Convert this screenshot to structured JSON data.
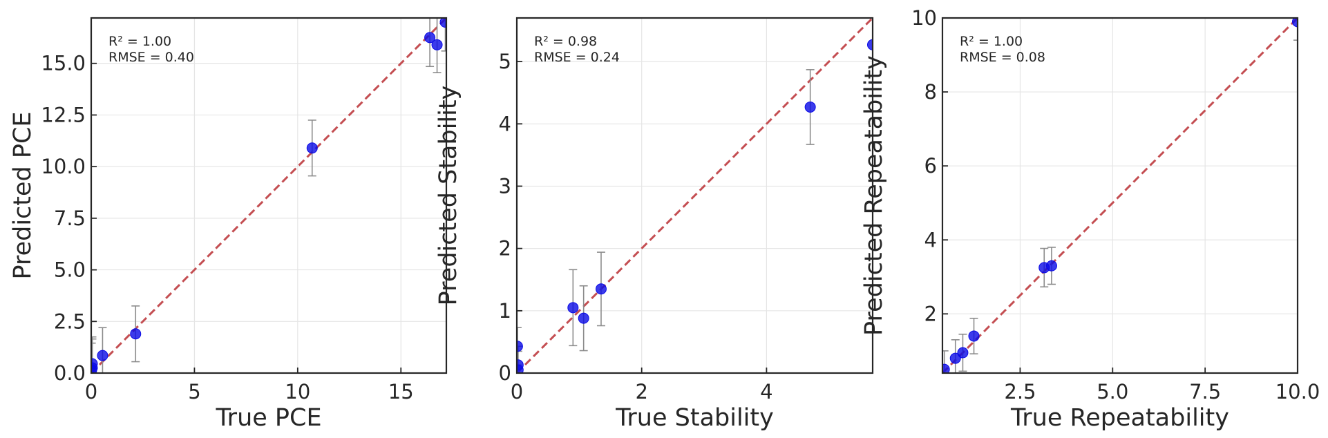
{
  "chart_data": [
    {
      "type": "scatter",
      "xlabel": "True PCE",
      "ylabel": "Predicted PCE",
      "xlim": [
        0,
        17.2
      ],
      "ylim": [
        0,
        17.2
      ],
      "xticks": [
        0,
        5,
        10,
        15
      ],
      "xtick_labels": [
        "0",
        "5",
        "10",
        "15"
      ],
      "yticks": [
        0,
        2.5,
        5,
        7.5,
        10,
        12.5,
        15
      ],
      "ytick_labels": [
        "0.0",
        "2.5",
        "5.0",
        "7.5",
        "10.0",
        "12.5",
        "15.0"
      ],
      "grid": true,
      "reference_line": "y = x",
      "annotations": [
        "R² = 1.00",
        "RMSE = 0.40"
      ],
      "points": [
        {
          "x": 0.05,
          "y": 0.45,
          "err": 1.3
        },
        {
          "x": 0.02,
          "y": 0.15,
          "err": 1.3
        },
        {
          "x": 0.05,
          "y": 0.25,
          "err": 1.4
        },
        {
          "x": 0.55,
          "y": 0.85,
          "err": 1.35
        },
        {
          "x": 2.15,
          "y": 1.9,
          "err": 1.35
        },
        {
          "x": 10.7,
          "y": 10.9,
          "err": 1.35
        },
        {
          "x": 16.4,
          "y": 16.25,
          "err": 1.4
        },
        {
          "x": 16.75,
          "y": 15.9,
          "err": 1.35
        },
        {
          "x": 17.15,
          "y": 17.0,
          "err": 1.4
        }
      ]
    },
    {
      "type": "scatter",
      "xlabel": "True Stability",
      "ylabel": "Predicted Stability",
      "xlim": [
        0,
        5.7
      ],
      "ylim": [
        0,
        5.7
      ],
      "xticks": [
        0,
        2,
        4
      ],
      "xtick_labels": [
        "0",
        "2",
        "4"
      ],
      "yticks": [
        0,
        1,
        2,
        3,
        4,
        5
      ],
      "ytick_labels": [
        "0",
        "1",
        "2",
        "3",
        "4",
        "5"
      ],
      "grid": true,
      "reference_line": "y = x",
      "annotations": [
        "R² = 0.98",
        "RMSE = 0.24"
      ],
      "points": [
        {
          "x": 0.01,
          "y": 0.43,
          "err": 0.3
        },
        {
          "x": 0.02,
          "y": 0.13,
          "err": 0.3
        },
        {
          "x": 0.02,
          "y": 0.05,
          "err": 0.3
        },
        {
          "x": 0.9,
          "y": 1.05,
          "err": 0.61
        },
        {
          "x": 1.07,
          "y": 0.88,
          "err": 0.52
        },
        {
          "x": 1.35,
          "y": 1.35,
          "err": 0.59
        },
        {
          "x": 4.7,
          "y": 4.27,
          "err": 0.6
        },
        {
          "x": 5.7,
          "y": 5.27,
          "err": 0.6
        }
      ]
    },
    {
      "type": "scatter",
      "xlabel": "True Repeatability",
      "ylabel": "Predicted Repeatability",
      "xlim": [
        0.4,
        10.0
      ],
      "ylim": [
        0.4,
        10.0
      ],
      "xticks": [
        2.5,
        5.0,
        7.5,
        10.0
      ],
      "xtick_labels": [
        "2.5",
        "5.0",
        "7.5",
        "10.0"
      ],
      "yticks": [
        2,
        4,
        6,
        8,
        10
      ],
      "ytick_labels": [
        "2",
        "4",
        "6",
        "8",
        "10"
      ],
      "grid": true,
      "reference_line": "y = x",
      "annotations": [
        "R² = 1.00",
        "RMSE = 0.08"
      ],
      "points": [
        {
          "x": 0.45,
          "y": 0.5,
          "err": 0.5
        },
        {
          "x": 0.75,
          "y": 0.8,
          "err": 0.5
        },
        {
          "x": 0.95,
          "y": 0.95,
          "err": 0.5
        },
        {
          "x": 1.25,
          "y": 1.4,
          "err": 0.48
        },
        {
          "x": 3.15,
          "y": 3.25,
          "err": 0.52
        },
        {
          "x": 3.35,
          "y": 3.3,
          "err": 0.5
        },
        {
          "x": 10.0,
          "y": 9.9,
          "err": 0.5
        }
      ]
    }
  ],
  "colors": {
    "point": "#0a0ae6",
    "error_bar": "#8c8c8c",
    "reference_line": "#c44e52",
    "grid": "#e5e5e5",
    "axis": "#262626"
  }
}
